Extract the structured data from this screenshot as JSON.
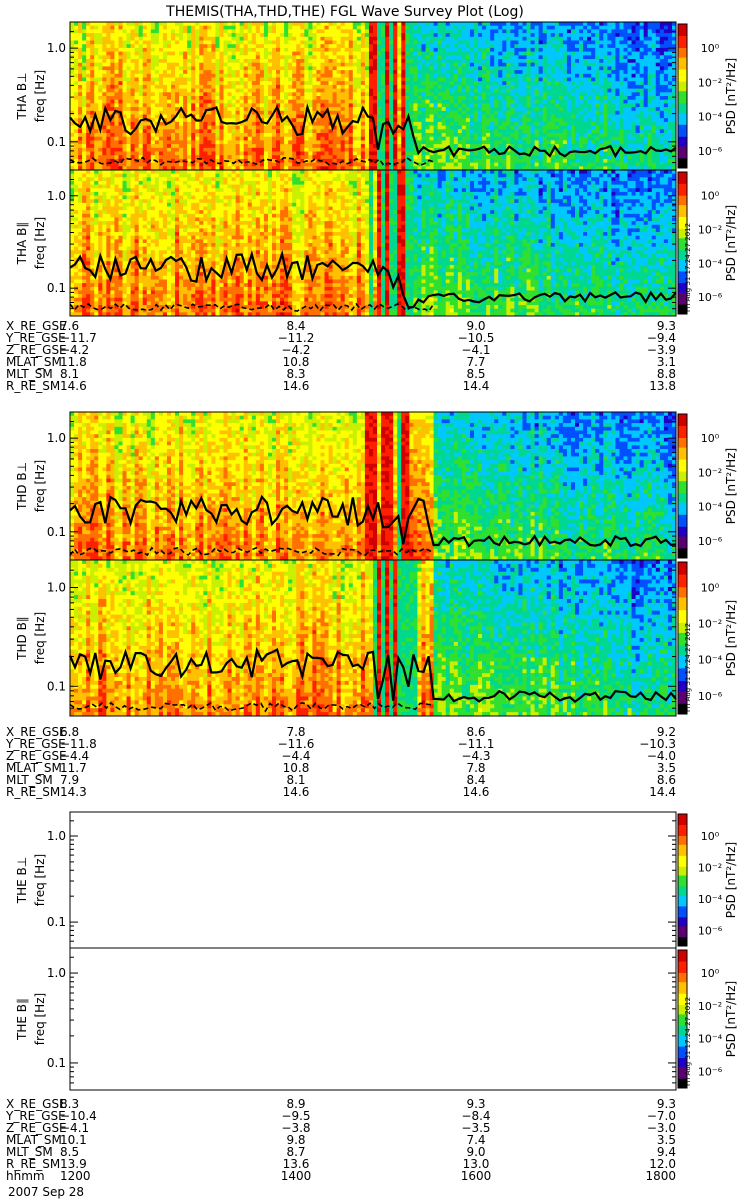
{
  "title": "THEMIS(THA,THD,THE) FGL Wave Survey Plot (Log)",
  "date_label": "2007 Sep 28",
  "stamp": "Fri Aug 31 17:24:27 2012",
  "colorbar": {
    "label": "PSD [nT²/Hz]",
    "ticks": [
      "10⁰",
      "10⁻²",
      "10⁻⁴",
      "10⁻⁶"
    ],
    "tick_exponents": [
      0,
      -2,
      -4,
      -6
    ],
    "range_exponents": [
      -7,
      1.4
    ],
    "colors": [
      "#000000",
      "#5a0070",
      "#2000c8",
      "#0050ff",
      "#00c8ff",
      "#00d890",
      "#30e030",
      "#c8f000",
      "#ffff00",
      "#ffc000",
      "#ff7000",
      "#ff2000",
      "#d00000"
    ]
  },
  "ylabel": "freq [Hz]",
  "freq_ticks": [
    "1.0",
    "0.1"
  ],
  "freq_tick_values": [
    1.0,
    0.1
  ],
  "freq_range": [
    0.05,
    1.9
  ],
  "panels": [
    {
      "id": "tha-bperp",
      "label": "THA B⊥",
      "has_data": true,
      "seed": 11,
      "quiet_start": 0.55,
      "stamp": false
    },
    {
      "id": "tha-bpar",
      "label": "THA B∥",
      "has_data": true,
      "seed": 23,
      "quiet_start": 0.55,
      "stamp": true
    },
    {
      "id": "thd-bperp",
      "label": "THD B⊥",
      "has_data": true,
      "seed": 37,
      "quiet_start": 0.6,
      "stamp": false
    },
    {
      "id": "thd-bpar",
      "label": "THD B∥",
      "has_data": true,
      "seed": 41,
      "quiet_start": 0.6,
      "stamp": true
    },
    {
      "id": "the-bperp",
      "label": "THE B⊥",
      "has_data": false,
      "seed": 0,
      "quiet_start": 1,
      "stamp": false
    },
    {
      "id": "the-bpar",
      "label": "THE B∥",
      "has_data": false,
      "seed": 0,
      "quiet_start": 1,
      "stamp": true
    }
  ],
  "ephemeris": [
    {
      "rows": [
        {
          "name": "X_RE_GSE",
          "values": [
            "7.6",
            "8.4",
            "9.0",
            "9.3"
          ]
        },
        {
          "name": "Y_RE_GSE",
          "values": [
            "−11.7",
            "−11.2",
            "−10.5",
            "−9.4"
          ]
        },
        {
          "name": "Z_RE_GSE",
          "values": [
            "−4.2",
            "−4.2",
            "−4.1",
            "−3.9"
          ]
        },
        {
          "name": "MLAT_SM",
          "values": [
            "11.8",
            "10.8",
            "7.7",
            "3.1"
          ]
        },
        {
          "name": "MLT_SM",
          "values": [
            "8.1",
            "8.3",
            "8.5",
            "8.8"
          ]
        },
        {
          "name": "R_RE_SM",
          "values": [
            "14.6",
            "14.6",
            "14.4",
            "13.8"
          ]
        }
      ]
    },
    {
      "rows": [
        {
          "name": "X_RE_GSE",
          "values": [
            "6.8",
            "7.8",
            "8.6",
            "9.2"
          ]
        },
        {
          "name": "Y_RE_GSE",
          "values": [
            "−11.8",
            "−11.6",
            "−11.1",
            "−10.3"
          ]
        },
        {
          "name": "Z_RE_GSE",
          "values": [
            "−4.4",
            "−4.4",
            "−4.3",
            "−4.0"
          ]
        },
        {
          "name": "MLAT_SM",
          "values": [
            "11.7",
            "10.8",
            "7.8",
            "3.5"
          ]
        },
        {
          "name": "MLT_SM",
          "values": [
            "7.9",
            "8.1",
            "8.4",
            "8.6"
          ]
        },
        {
          "name": "R_RE_SM",
          "values": [
            "14.3",
            "14.6",
            "14.6",
            "14.4"
          ]
        }
      ]
    },
    {
      "rows": [
        {
          "name": "X_RE_GSE",
          "values": [
            "8.3",
            "8.9",
            "9.3",
            "9.3"
          ]
        },
        {
          "name": "Y_RE_GSE",
          "values": [
            "−10.4",
            "−9.5",
            "−8.4",
            "−7.0"
          ]
        },
        {
          "name": "Z_RE_GSE",
          "values": [
            "−4.1",
            "−3.8",
            "−3.5",
            "−3.0"
          ]
        },
        {
          "name": "MLAT_SM",
          "values": [
            "10.1",
            "9.8",
            "7.4",
            "3.5"
          ]
        },
        {
          "name": "MLT_SM",
          "values": [
            "8.5",
            "8.7",
            "9.0",
            "9.4"
          ]
        },
        {
          "name": "R_RE_SM",
          "values": [
            "13.9",
            "13.6",
            "13.0",
            "12.0"
          ]
        },
        {
          "name": "hhmm",
          "values": [
            "1200",
            "1400",
            "1600",
            "1800"
          ]
        }
      ]
    }
  ],
  "chart_data": {
    "type": "heatmap",
    "title": "THEMIS(THA,THD,THE) FGL Wave Survey Plot (Log)",
    "xlabel": "hhmm",
    "x_ticks": [
      "1200",
      "1400",
      "1600",
      "1800"
    ],
    "ylabel": "freq [Hz]",
    "y_scale": "log",
    "ylim": [
      0.05,
      1.9
    ],
    "z_label": "PSD [nT²/Hz]",
    "z_scale": "log",
    "z_ticks": [
      1,
      0.01,
      0.0001,
      1e-06
    ],
    "series": [
      {
        "name": "THA B⊥",
        "data": "spectrogram"
      },
      {
        "name": "THA B∥",
        "data": "spectrogram"
      },
      {
        "name": "THD B⊥",
        "data": "spectrogram"
      },
      {
        "name": "THD B∥",
        "data": "spectrogram"
      },
      {
        "name": "THE B⊥",
        "data": "none"
      },
      {
        "name": "THE B∥",
        "data": "none"
      }
    ]
  }
}
